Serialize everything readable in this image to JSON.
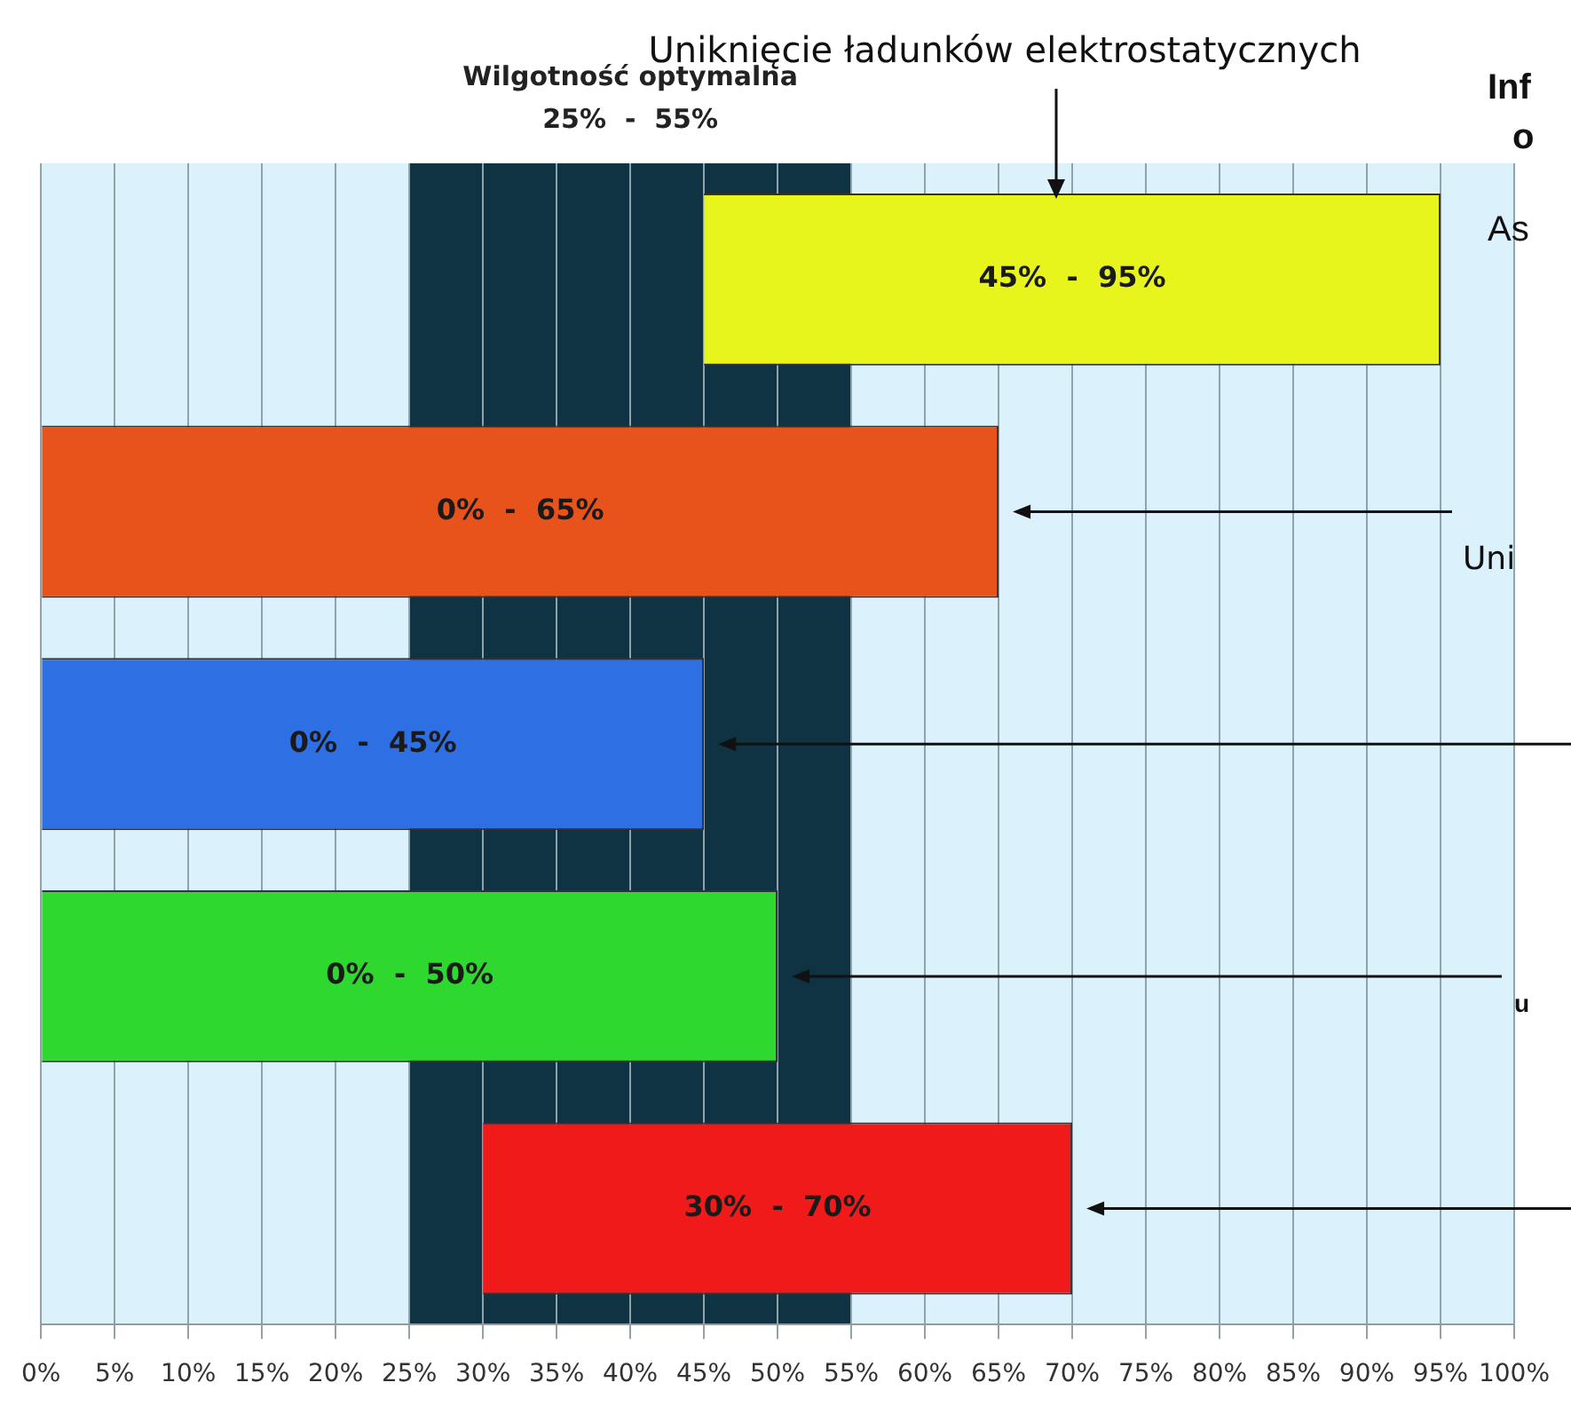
{
  "chart_data": {
    "type": "bar",
    "orientation": "horizontal",
    "categories": [
      null,
      null,
      null,
      null,
      null
    ],
    "base": [
      45,
      0,
      0,
      0,
      30
    ],
    "values": [
      50,
      65,
      45,
      50,
      40
    ],
    "colors": [
      "#e8f51c",
      "#e8531c",
      "#2e6fe3",
      "#2fd82f",
      "#f01a1a"
    ],
    "xlim": [
      0,
      100
    ],
    "xticks": [
      {
        "value": 0,
        "label": "0%"
      },
      {
        "value": 5,
        "label": "5%"
      },
      {
        "value": 10,
        "label": "10%"
      },
      {
        "value": 15,
        "label": "15%"
      },
      {
        "value": 20,
        "label": "20%"
      },
      {
        "value": 25,
        "label": "25%"
      },
      {
        "value": 30,
        "label": "30%"
      },
      {
        "value": 35,
        "label": "35%"
      },
      {
        "value": 40,
        "label": "40%"
      },
      {
        "value": 45,
        "label": "45%"
      },
      {
        "value": 50,
        "label": "50%"
      },
      {
        "value": 55,
        "label": "55%"
      },
      {
        "value": 60,
        "label": "60%"
      },
      {
        "value": 65,
        "label": "65%"
      },
      {
        "value": 70,
        "label": "70%"
      },
      {
        "value": 75,
        "label": "75%"
      },
      {
        "value": 80,
        "label": "80%"
      },
      {
        "value": 85,
        "label": "85%"
      },
      {
        "value": 90,
        "label": "90%"
      },
      {
        "value": 95,
        "label": "95%"
      },
      {
        "value": 100,
        "label": "100%"
      }
    ],
    "grid": "x",
    "bands": [
      {
        "axis": "x",
        "from": 25,
        "to": 55,
        "label": "Wilgotność optymalna\n25%  -  55%",
        "color": "#0f3342"
      }
    ],
    "annotations": [
      "45%  -  95%",
      "0%  -  65%",
      "0%  -  45%",
      "0%  -  50%",
      "30%  -  70%",
      "Uniknięcie ładunków elektrostatycznych",
      "Inf",
      "o",
      "As",
      "Uni",
      "u"
    ]
  }
}
